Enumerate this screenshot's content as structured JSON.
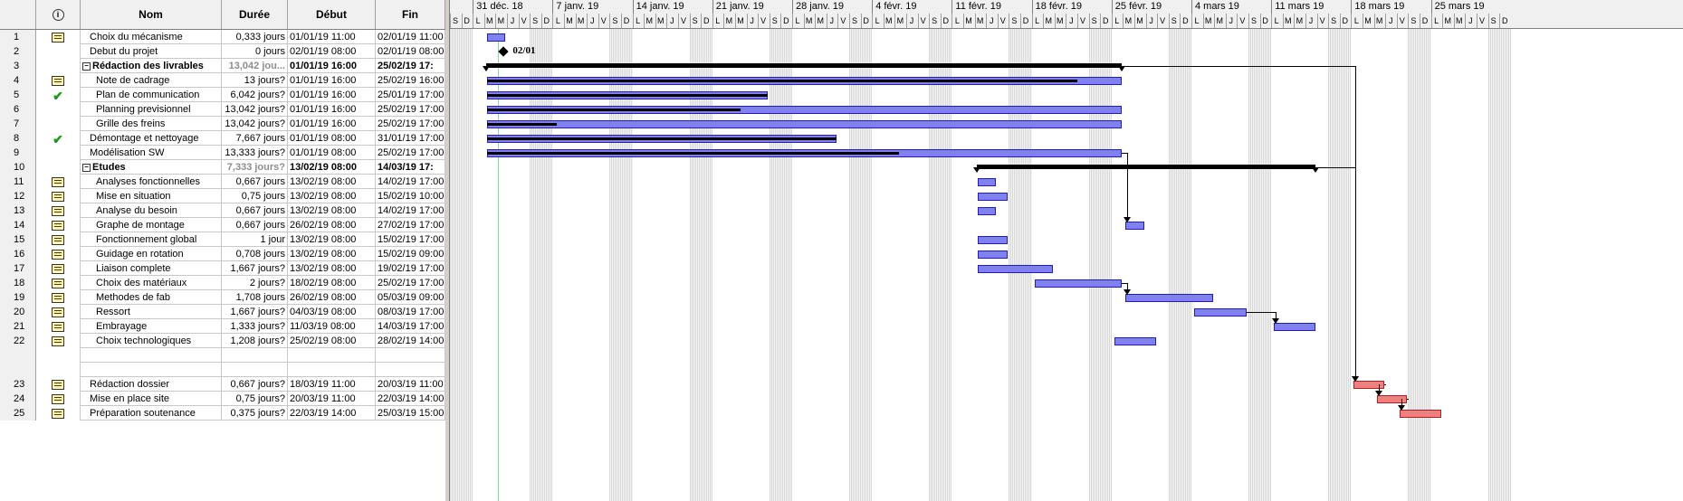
{
  "columns": {
    "id": "",
    "indicator_icon": "info-icon",
    "name": "Nom",
    "duration": "Durée",
    "start": "Début",
    "end": "Fin"
  },
  "timescale": {
    "weeks": [
      "31 déc. 18",
      "7 janv. 19",
      "14 janv. 19",
      "21 janv. 19",
      "28 janv. 19",
      "4 févr. 19",
      "11 févr. 19",
      "18 févr. 19",
      "25 févr. 19",
      "4 mars 19",
      "11 mars 19",
      "18 mars 19",
      "25 mars 19"
    ],
    "leading_days": [
      "S",
      "D"
    ],
    "days": [
      "L",
      "M",
      "M",
      "J",
      "V",
      "S",
      "D"
    ]
  },
  "milestone_label": "02/01",
  "tasks": [
    {
      "id": "1",
      "ind": "note",
      "name": "Choix du mécanisme",
      "dur": "0,333 jours",
      "start": "01/01/19 11:00",
      "end": "02/01/19 11:00",
      "level": 1
    },
    {
      "id": "2",
      "ind": "",
      "name": "Debut du projet",
      "dur": "0 jours",
      "start": "02/01/19 08:00",
      "end": "02/01/19 08:00",
      "level": 1
    },
    {
      "id": "3",
      "ind": "",
      "name": "Rédaction des livrables",
      "dur": "13,042 jou...",
      "start": "01/01/19 16:00",
      "end": "25/02/19 17:",
      "level": 0,
      "summary": true
    },
    {
      "id": "4",
      "ind": "note",
      "name": "Note de cadrage",
      "dur": "13 jours?",
      "start": "01/01/19 16:00",
      "end": "25/02/19 16:00",
      "level": 2
    },
    {
      "id": "5",
      "ind": "check",
      "name": "Plan de communication",
      "dur": "6,042 jours?",
      "start": "01/01/19 16:00",
      "end": "25/01/19 17:00",
      "level": 2
    },
    {
      "id": "6",
      "ind": "",
      "name": "Planning previsionnel",
      "dur": "13,042 jours?",
      "start": "01/01/19 16:00",
      "end": "25/02/19 17:00",
      "level": 2
    },
    {
      "id": "7",
      "ind": "",
      "name": "Grille des freins",
      "dur": "13,042 jours?",
      "start": "01/01/19 16:00",
      "end": "25/02/19 17:00",
      "level": 2
    },
    {
      "id": "8",
      "ind": "check",
      "name": "Démontage et nettoyage",
      "dur": "7,667 jours",
      "start": "01/01/19 08:00",
      "end": "31/01/19 17:00",
      "level": 1
    },
    {
      "id": "9",
      "ind": "",
      "name": "Modélisation SW",
      "dur": "13,333 jours?",
      "start": "01/01/19 08:00",
      "end": "25/02/19 17:00",
      "level": 1
    },
    {
      "id": "10",
      "ind": "",
      "name": "Etudes",
      "dur": "7,333 jours?",
      "start": "13/02/19 08:00",
      "end": "14/03/19 17:",
      "level": 0,
      "summary": true
    },
    {
      "id": "11",
      "ind": "note",
      "name": "Analyses fonctionnelles",
      "dur": "0,667 jours",
      "start": "13/02/19 08:00",
      "end": "14/02/19 17:00",
      "level": 2
    },
    {
      "id": "12",
      "ind": "note",
      "name": "Mise en situation",
      "dur": "0,75 jours",
      "start": "13/02/19 08:00",
      "end": "15/02/19 10:00",
      "level": 2
    },
    {
      "id": "13",
      "ind": "note",
      "name": "Analyse du besoin",
      "dur": "0,667 jours",
      "start": "13/02/19 08:00",
      "end": "14/02/19 17:00",
      "level": 2
    },
    {
      "id": "14",
      "ind": "note",
      "name": "Graphe de montage",
      "dur": "0,667 jours",
      "start": "26/02/19 08:00",
      "end": "27/02/19 17:00",
      "level": 2
    },
    {
      "id": "15",
      "ind": "note",
      "name": "Fonctionnement global",
      "dur": "1 jour",
      "start": "13/02/19 08:00",
      "end": "15/02/19 17:00",
      "level": 2
    },
    {
      "id": "16",
      "ind": "note",
      "name": "Guidage en rotation",
      "dur": "0,708 jours",
      "start": "13/02/19 08:00",
      "end": "15/02/19 09:00",
      "level": 2
    },
    {
      "id": "17",
      "ind": "note",
      "name": "Liaison  complete",
      "dur": "1,667 jours?",
      "start": "13/02/19 08:00",
      "end": "19/02/19 17:00",
      "level": 2
    },
    {
      "id": "18",
      "ind": "note",
      "name": "Choix des matériaux",
      "dur": "2 jours?",
      "start": "18/02/19 08:00",
      "end": "25/02/19 17:00",
      "level": 2
    },
    {
      "id": "19",
      "ind": "note",
      "name": "Methodes de fab",
      "dur": "1,708 jours",
      "start": "26/02/19 08:00",
      "end": "05/03/19 09:00",
      "level": 2
    },
    {
      "id": "20",
      "ind": "note",
      "name": "Ressort",
      "dur": "1,667 jours?",
      "start": "04/03/19 08:00",
      "end": "08/03/19 17:00",
      "level": 2
    },
    {
      "id": "21",
      "ind": "note",
      "name": "Embrayage",
      "dur": "1,333 jours?",
      "start": "11/03/19 08:00",
      "end": "14/03/19 17:00",
      "level": 2
    },
    {
      "id": "22",
      "ind": "note",
      "name": "Choix technologiques",
      "dur": "1,208 jours?",
      "start": "25/02/19 08:00",
      "end": "28/02/19 14:00",
      "level": 2
    },
    {
      "id": "",
      "ind": "",
      "name": "",
      "dur": "",
      "start": "",
      "end": "",
      "level": 1
    },
    {
      "id": "",
      "ind": "",
      "name": "",
      "dur": "",
      "start": "",
      "end": "",
      "level": 1
    },
    {
      "id": "23",
      "ind": "note",
      "name": "Rédaction dossier",
      "dur": "0,667 jours?",
      "start": "18/03/19 11:00",
      "end": "20/03/19 11:00",
      "level": 1
    },
    {
      "id": "24",
      "ind": "note",
      "name": "Mise en place site",
      "dur": "0,75 jours?",
      "start": "20/03/19 11:00",
      "end": "22/03/19 14:00",
      "level": 1
    },
    {
      "id": "25",
      "ind": "note",
      "name": "Préparation soutenance",
      "dur": "0,375 jours?",
      "start": "22/03/19 14:00",
      "end": "25/03/19 15:00",
      "level": 1
    }
  ],
  "gantt": {
    "start_date": "2018-12-29",
    "bars": [
      {
        "row": 0,
        "start": "2019-01-01",
        "end": "2019-01-02",
        "progress": 0
      },
      {
        "row": 3,
        "start": "2019-01-01",
        "end": "2019-02-25",
        "progress": 0.93
      },
      {
        "row": 4,
        "start": "2019-01-01",
        "end": "2019-01-25",
        "progress": 1
      },
      {
        "row": 5,
        "start": "2019-01-01",
        "end": "2019-02-25",
        "progress": 0.4
      },
      {
        "row": 6,
        "start": "2019-01-01",
        "end": "2019-02-25",
        "progress": 0.11
      },
      {
        "row": 7,
        "start": "2019-01-01",
        "end": "2019-01-31",
        "progress": 1
      },
      {
        "row": 8,
        "start": "2019-01-01",
        "end": "2019-02-25",
        "progress": 0.65
      },
      {
        "row": 10,
        "start": "2019-02-13",
        "end": "2019-02-14",
        "progress": 0
      },
      {
        "row": 11,
        "start": "2019-02-13",
        "end": "2019-02-15",
        "progress": 0
      },
      {
        "row": 12,
        "start": "2019-02-13",
        "end": "2019-02-14",
        "progress": 0
      },
      {
        "row": 13,
        "start": "2019-02-26",
        "end": "2019-02-27",
        "progress": 0
      },
      {
        "row": 14,
        "start": "2019-02-13",
        "end": "2019-02-15",
        "progress": 0
      },
      {
        "row": 15,
        "start": "2019-02-13",
        "end": "2019-02-15",
        "progress": 0
      },
      {
        "row": 16,
        "start": "2019-02-13",
        "end": "2019-02-19",
        "progress": 0
      },
      {
        "row": 17,
        "start": "2019-02-18",
        "end": "2019-02-25",
        "progress": 0
      },
      {
        "row": 18,
        "start": "2019-02-26",
        "end": "2019-03-05",
        "progress": 0
      },
      {
        "row": 19,
        "start": "2019-03-04",
        "end": "2019-03-08",
        "progress": 0
      },
      {
        "row": 20,
        "start": "2019-03-11",
        "end": "2019-03-14",
        "progress": 0
      },
      {
        "row": 21,
        "start": "2019-02-25",
        "end": "2019-02-28",
        "progress": 0
      },
      {
        "row": 24,
        "start": "2019-03-18",
        "end": "2019-03-20",
        "progress": 0,
        "red": true
      },
      {
        "row": 25,
        "start": "2019-03-20",
        "end": "2019-03-22",
        "progress": 0,
        "red": true
      },
      {
        "row": 26,
        "start": "2019-03-22",
        "end": "2019-03-25",
        "progress": 0,
        "red": true
      }
    ],
    "summaries": [
      {
        "row": 2,
        "start": "2019-01-01",
        "end": "2019-02-25"
      },
      {
        "row": 9,
        "start": "2019-02-13",
        "end": "2019-03-14"
      }
    ],
    "milestones": [
      {
        "row": 1,
        "date": "2019-01-02"
      }
    ]
  },
  "colors": {
    "task_bar": "#8080f0",
    "critical_bar": "#f08080",
    "progress": "#000000",
    "today_line": "#88dd88"
  }
}
